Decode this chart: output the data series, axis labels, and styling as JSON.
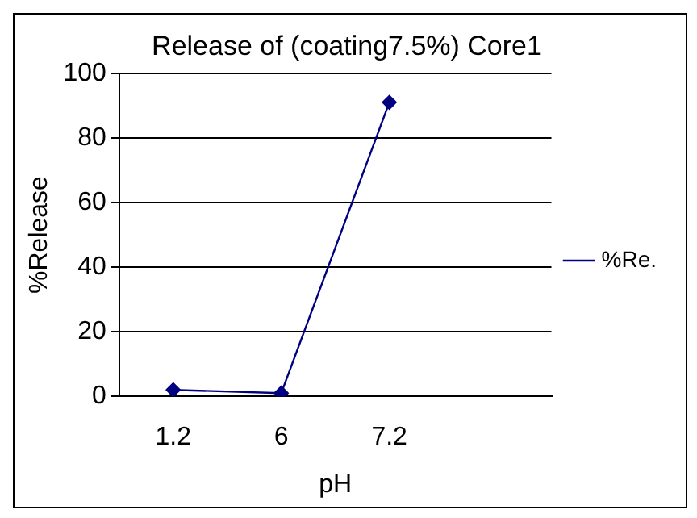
{
  "chart_data": {
    "type": "line",
    "title": "Release of (coating7.5%) Core1",
    "xlabel": "pH",
    "ylabel": "%Release",
    "categories": [
      "1.2",
      "6",
      "7.2",
      null
    ],
    "series": [
      {
        "name": "%Re.",
        "color": "#000080",
        "values": [
          2,
          1,
          91,
          null
        ]
      }
    ],
    "ylim": [
      0,
      100
    ],
    "yticks": [
      0,
      20,
      40,
      60,
      80,
      100
    ],
    "grid": "y",
    "legend": "right",
    "marker": "diamond",
    "line_style": "solid"
  }
}
